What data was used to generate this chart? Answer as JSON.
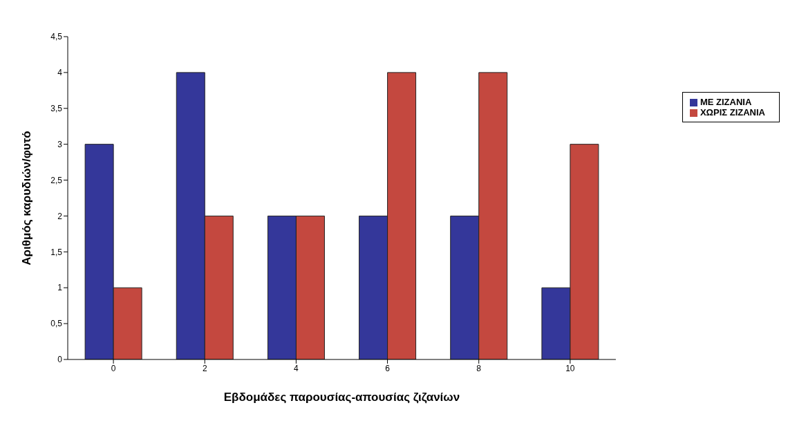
{
  "chart_data": {
    "type": "bar",
    "xlabel": "Εβδομάδες παρουσίας-απουσίας ζιζανίων",
    "ylabel": "Αριθμός καρυδιών/φυτό",
    "categories": [
      "0",
      "2",
      "4",
      "6",
      "8",
      "10"
    ],
    "series": [
      {
        "name": "ΜΕ ΖΙΖΑΝΙΑ",
        "color": "#34379a",
        "values": [
          3,
          4,
          2,
          2,
          2,
          1
        ]
      },
      {
        "name": "ΧΩΡΙΣ ΖΙΖΑΝΙΑ",
        "color": "#c4483f",
        "values": [
          1,
          2,
          2,
          4,
          4,
          3
        ]
      }
    ],
    "ylim": [
      0,
      4.5
    ],
    "yticks": [
      0,
      {
        "value": 0.5,
        "label": "0,5"
      },
      1,
      {
        "value": 1.5,
        "label": "1,5"
      },
      2,
      {
        "value": 2.5,
        "label": "2,5"
      },
      3,
      {
        "value": 3.5,
        "label": "3,5"
      },
      4,
      {
        "value": 4.5,
        "label": "4,5"
      }
    ],
    "grid": false,
    "legend": "top right"
  }
}
